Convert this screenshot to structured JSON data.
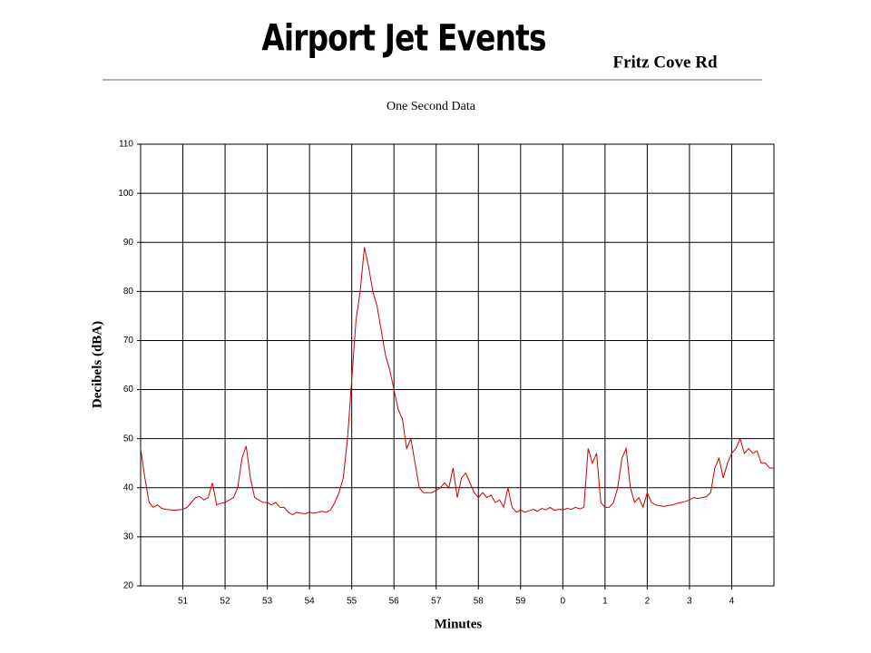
{
  "header": {
    "title": "Airport Jet Events",
    "subtitle": "Fritz Cove Rd"
  },
  "chart_data": {
    "type": "line",
    "title": "One Second Data",
    "xlabel": "Minutes",
    "ylabel": "Decibels (dBA)",
    "color": "#cc0000",
    "grid": true,
    "xlim": [
      50,
      65
    ],
    "ylim": [
      20,
      110
    ],
    "xticks": [
      51,
      52,
      53,
      54,
      55,
      56,
      57,
      58,
      59,
      {
        "value": 60,
        "label": "0"
      },
      {
        "value": 61,
        "label": "1"
      },
      {
        "value": 62,
        "label": "2"
      },
      {
        "value": 63,
        "label": "3"
      },
      {
        "value": 64,
        "label": "4"
      }
    ],
    "yticks": [
      20,
      30,
      40,
      50,
      60,
      70,
      80,
      90,
      100,
      110
    ],
    "x": [
      50.0,
      50.1,
      50.2,
      50.3,
      50.4,
      50.5,
      50.6,
      50.7,
      50.8,
      50.9,
      51.0,
      51.1,
      51.2,
      51.3,
      51.4,
      51.5,
      51.6,
      51.7,
      51.8,
      51.9,
      52.0,
      52.1,
      52.2,
      52.3,
      52.4,
      52.5,
      52.6,
      52.7,
      52.8,
      52.9,
      53.0,
      53.1,
      53.2,
      53.3,
      53.4,
      53.5,
      53.6,
      53.7,
      53.8,
      53.9,
      54.0,
      54.1,
      54.2,
      54.3,
      54.4,
      54.5,
      54.6,
      54.7,
      54.8,
      54.9,
      55.0,
      55.1,
      55.2,
      55.3,
      55.4,
      55.5,
      55.6,
      55.7,
      55.8,
      55.9,
      56.0,
      56.1,
      56.2,
      56.3,
      56.4,
      56.5,
      56.6,
      56.7,
      56.8,
      56.9,
      57.0,
      57.1,
      57.2,
      57.3,
      57.4,
      57.5,
      57.6,
      57.7,
      57.8,
      57.9,
      58.0,
      58.1,
      58.2,
      58.3,
      58.4,
      58.5,
      58.6,
      58.7,
      58.8,
      58.9,
      59.0,
      59.1,
      59.2,
      59.3,
      59.4,
      59.5,
      59.6,
      59.7,
      59.8,
      59.9,
      60.0,
      60.1,
      60.2,
      60.3,
      60.4,
      60.5,
      60.6,
      60.7,
      60.8,
      60.9,
      61.0,
      61.1,
      61.2,
      61.3,
      61.4,
      61.5,
      61.6,
      61.7,
      61.8,
      61.9,
      62.0,
      62.1,
      62.2,
      62.3,
      62.4,
      62.5,
      62.6,
      62.7,
      62.8,
      62.9,
      63.0,
      63.1,
      63.2,
      63.3,
      63.4,
      63.5,
      63.6,
      63.7,
      63.8,
      63.9,
      64.0,
      64.1,
      64.2,
      64.3,
      64.4,
      64.5,
      64.6,
      64.7,
      64.8,
      64.9,
      65.0
    ],
    "values": [
      48,
      42,
      37,
      36,
      36.5,
      35.8,
      35.6,
      35.5,
      35.4,
      35.5,
      35.6,
      36,
      37,
      38,
      38.2,
      37.5,
      38,
      41,
      36.5,
      36.8,
      37,
      37.5,
      38,
      40,
      46,
      48.5,
      42,
      38,
      37.5,
      37,
      37,
      36.5,
      37,
      36,
      36,
      35,
      34.5,
      35,
      34.8,
      34.7,
      35,
      34.8,
      35,
      35.2,
      35,
      35.5,
      37,
      39,
      42,
      50,
      62,
      74,
      80,
      89,
      85,
      80,
      77,
      72,
      67,
      64,
      60,
      56,
      54,
      48,
      50,
      45,
      40,
      39,
      39,
      39,
      39.5,
      40,
      41,
      40,
      44,
      38,
      42,
      43,
      41,
      39,
      38,
      39,
      38,
      38.5,
      37,
      37.5,
      36,
      40,
      36,
      35,
      35.5,
      35,
      35.3,
      35.6,
      35.2,
      35.8,
      35.5,
      36,
      35.4,
      35.6,
      35.5,
      35.8,
      35.6,
      36,
      35.7,
      36,
      48,
      45,
      47,
      37,
      36,
      36,
      37,
      40,
      46,
      48,
      40,
      37,
      38,
      36,
      39,
      37,
      36.5,
      36.3,
      36.2,
      36.4,
      36.5,
      36.8,
      37,
      37.2,
      37.5,
      38,
      37.8,
      38,
      38.2,
      39,
      44,
      46,
      42,
      45,
      47,
      48,
      50,
      47,
      48,
      47,
      47.5,
      45,
      45,
      44,
      44
    ]
  }
}
